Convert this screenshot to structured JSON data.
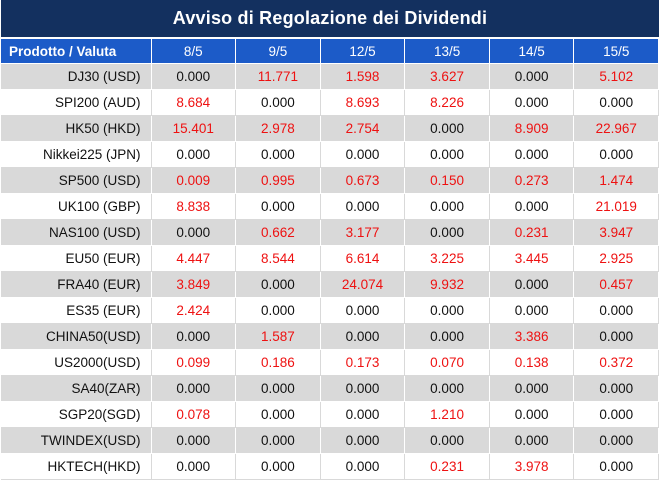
{
  "title": "Avviso di Regolazione dei Dividendi",
  "header": {
    "product_label": "Prodotto / Valuta",
    "dates": [
      "8/5",
      "9/5",
      "12/5",
      "13/5",
      "14/5",
      "15/5"
    ]
  },
  "rows": [
    {
      "product": "DJ30 (USD)",
      "values": [
        "0.000",
        "11.771",
        "1.598",
        "3.627",
        "0.000",
        "5.102"
      ]
    },
    {
      "product": "SPI200 (AUD)",
      "values": [
        "8.684",
        "0.000",
        "8.693",
        "8.226",
        "0.000",
        "0.000"
      ]
    },
    {
      "product": "HK50 (HKD)",
      "values": [
        "15.401",
        "2.978",
        "2.754",
        "0.000",
        "8.909",
        "22.967"
      ]
    },
    {
      "product": "Nikkei225 (JPN)",
      "values": [
        "0.000",
        "0.000",
        "0.000",
        "0.000",
        "0.000",
        "0.000"
      ]
    },
    {
      "product": "SP500 (USD)",
      "values": [
        "0.009",
        "0.995",
        "0.673",
        "0.150",
        "0.273",
        "1.474"
      ]
    },
    {
      "product": "UK100 (GBP)",
      "values": [
        "8.838",
        "0.000",
        "0.000",
        "0.000",
        "0.000",
        "21.019"
      ]
    },
    {
      "product": "NAS100 (USD)",
      "values": [
        "0.000",
        "0.662",
        "3.177",
        "0.000",
        "0.231",
        "3.947"
      ]
    },
    {
      "product": "EU50 (EUR)",
      "values": [
        "4.447",
        "8.544",
        "6.614",
        "3.225",
        "3.445",
        "2.925"
      ]
    },
    {
      "product": "FRA40 (EUR)",
      "values": [
        "3.849",
        "0.000",
        "24.074",
        "9.932",
        "0.000",
        "0.457"
      ]
    },
    {
      "product": "ES35 (EUR)",
      "values": [
        "2.424",
        "0.000",
        "0.000",
        "0.000",
        "0.000",
        "0.000"
      ]
    },
    {
      "product": "CHINA50(USD)",
      "values": [
        "0.000",
        "1.587",
        "0.000",
        "0.000",
        "3.386",
        "0.000"
      ]
    },
    {
      "product": "US2000(USD)",
      "values": [
        "0.099",
        "0.186",
        "0.173",
        "0.070",
        "0.138",
        "0.372"
      ]
    },
    {
      "product": "SA40(ZAR)",
      "values": [
        "0.000",
        "0.000",
        "0.000",
        "0.000",
        "0.000",
        "0.000"
      ]
    },
    {
      "product": "SGP20(SGD)",
      "values": [
        "0.078",
        "0.000",
        "0.000",
        "1.210",
        "0.000",
        "0.000"
      ]
    },
    {
      "product": "TWINDEX(USD)",
      "values": [
        "0.000",
        "0.000",
        "0.000",
        "0.000",
        "0.000",
        "0.000"
      ]
    },
    {
      "product": "HKTECH(HKD)",
      "values": [
        "0.000",
        "0.000",
        "0.000",
        "0.231",
        "3.978",
        "0.000"
      ]
    }
  ],
  "colors": {
    "title_background": "#13305f",
    "header_background": "#1c5bc8",
    "band_gray": "#d9d9d9",
    "positive_value": "#ee1111",
    "zero_value": "#111111"
  }
}
